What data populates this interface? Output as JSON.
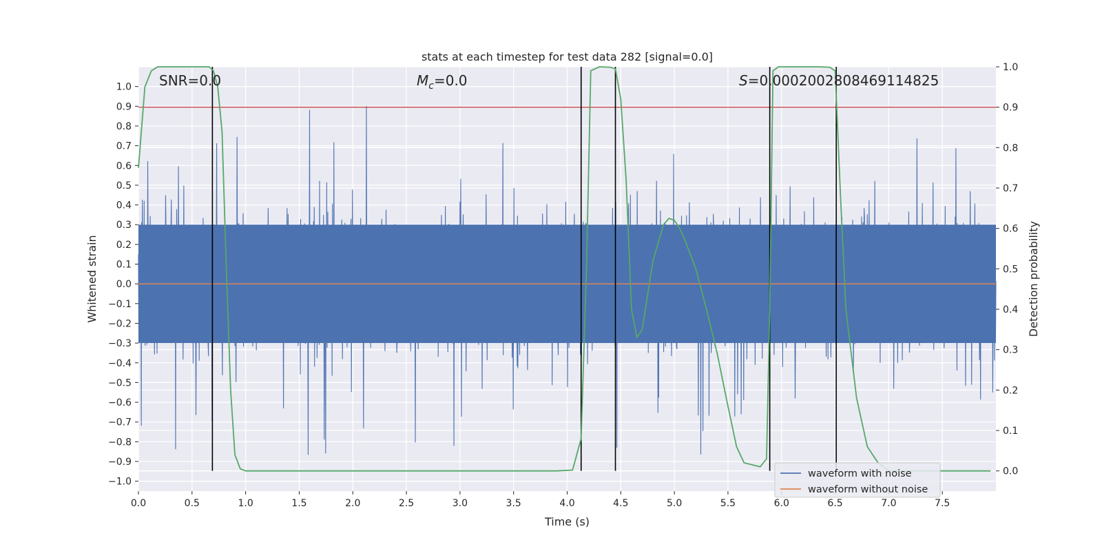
{
  "chart_data": {
    "type": "line",
    "title": "stats at each timestep for test data 282 [signal=0.0]",
    "xlabel": "Time (s)",
    "ylabel_left": "Whitened strain",
    "ylabel_right": "Detection probability",
    "xlim": [
      0.0,
      8.0
    ],
    "ylim_left": [
      -1.05,
      1.1
    ],
    "ylim_right": [
      -0.05,
      1.0
    ],
    "x_ticks": [
      0.0,
      0.5,
      1.0,
      1.5,
      2.0,
      2.5,
      3.0,
      3.5,
      4.0,
      4.5,
      5.0,
      5.5,
      6.0,
      6.5,
      7.0,
      7.5
    ],
    "x_tick_labels": [
      "0.0",
      "0.5",
      "1.0",
      "1.5",
      "2.0",
      "2.5",
      "3.0",
      "3.5",
      "4.0",
      "4.5",
      "5.0",
      "5.5",
      "6.0",
      "6.5",
      "7.0",
      "7.5"
    ],
    "y_left_ticks": [
      1.0,
      0.9,
      0.8,
      0.7,
      0.6,
      0.5,
      0.4,
      0.3,
      0.2,
      0.1,
      0.0,
      -0.1,
      -0.2,
      -0.3,
      -0.4,
      -0.5,
      -0.6,
      -0.7,
      -0.8,
      -0.9,
      -1.0
    ],
    "y_left_tick_labels": [
      "1.0",
      "0.9",
      "0.8",
      "0.7",
      "0.6",
      "0.5",
      "0.4",
      "0.3",
      "0.2",
      "0.1",
      "0.0",
      "−0.1",
      "−0.2",
      "−0.3",
      "−0.4",
      "−0.5",
      "−0.6",
      "−0.7",
      "−0.8",
      "−0.9",
      "−1.0"
    ],
    "y_right_ticks": [
      1.0,
      0.9,
      0.8,
      0.7,
      0.6,
      0.5,
      0.4,
      0.3,
      0.2,
      0.1,
      0.0
    ],
    "y_right_tick_labels": [
      "1.0",
      "0.9",
      "0.8",
      "0.7",
      "0.6",
      "0.5",
      "0.4",
      "0.3",
      "0.2",
      "0.1",
      "0.0"
    ],
    "annotations": {
      "snr": "SNR=0.0",
      "mc_symbol": "M",
      "mc_sub": "c",
      "mc_value": "=0.0",
      "s_symbol": "S",
      "s_value": "=0.0002002808469114825"
    },
    "legend": {
      "location": "lower-right",
      "entries": [
        "waveform with noise",
        "waveform without noise"
      ]
    },
    "threshold_right_axis": 0.9,
    "vertical_markers_x": [
      0.69,
      4.13,
      4.45,
      5.89,
      6.51
    ],
    "series": [
      {
        "name": "waveform with noise",
        "axis": "left",
        "color": "#4c72b0",
        "style": "dense noise, core amplitude ~0.3, peaks up to ~1.0",
        "core_amplitude": 0.3,
        "max_amplitude": 1.0,
        "random_seed": 282
      },
      {
        "name": "waveform without noise",
        "axis": "left",
        "color": "#dd8452",
        "constant_value": 0.0
      },
      {
        "name": "detection probability",
        "axis": "right",
        "color": "#55a868",
        "x": [
          0.0,
          0.03,
          0.06,
          0.12,
          0.18,
          0.3,
          0.45,
          0.6,
          0.66,
          0.7,
          0.74,
          0.78,
          0.82,
          0.86,
          0.9,
          0.95,
          1.0,
          1.5,
          2.0,
          2.5,
          3.0,
          3.5,
          3.9,
          4.05,
          4.13,
          4.18,
          4.22,
          4.3,
          4.4,
          4.45,
          4.5,
          4.55,
          4.6,
          4.65,
          4.7,
          4.8,
          4.9,
          4.95,
          5.0,
          5.05,
          5.1,
          5.2,
          5.3,
          5.4,
          5.5,
          5.58,
          5.65,
          5.8,
          5.86,
          5.89,
          5.92,
          5.97,
          6.05,
          6.2,
          6.35,
          6.45,
          6.5,
          6.55,
          6.6,
          6.7,
          6.8,
          6.9,
          7.0,
          7.5,
          7.95
        ],
        "y": [
          0.75,
          0.85,
          0.95,
          0.99,
          1.0,
          1.0,
          1.0,
          1.0,
          1.0,
          0.99,
          0.95,
          0.84,
          0.5,
          0.2,
          0.04,
          0.005,
          0.0,
          0.0,
          0.0,
          0.0,
          0.0,
          0.0,
          0.0,
          0.002,
          0.08,
          0.5,
          0.99,
          1.0,
          0.999,
          0.995,
          0.92,
          0.72,
          0.4,
          0.33,
          0.35,
          0.52,
          0.61,
          0.625,
          0.62,
          0.6,
          0.57,
          0.5,
          0.4,
          0.29,
          0.16,
          0.06,
          0.02,
          0.01,
          0.03,
          0.4,
          0.99,
          1.0,
          1.0,
          1.0,
          1.0,
          0.999,
          0.99,
          0.68,
          0.4,
          0.18,
          0.06,
          0.02,
          0.0,
          0.0,
          0.0
        ]
      }
    ],
    "colors": {
      "plot_background": "#eaeaf2",
      "grid": "#ffffff",
      "threshold": "#c44e52",
      "marker": "#000000"
    }
  }
}
